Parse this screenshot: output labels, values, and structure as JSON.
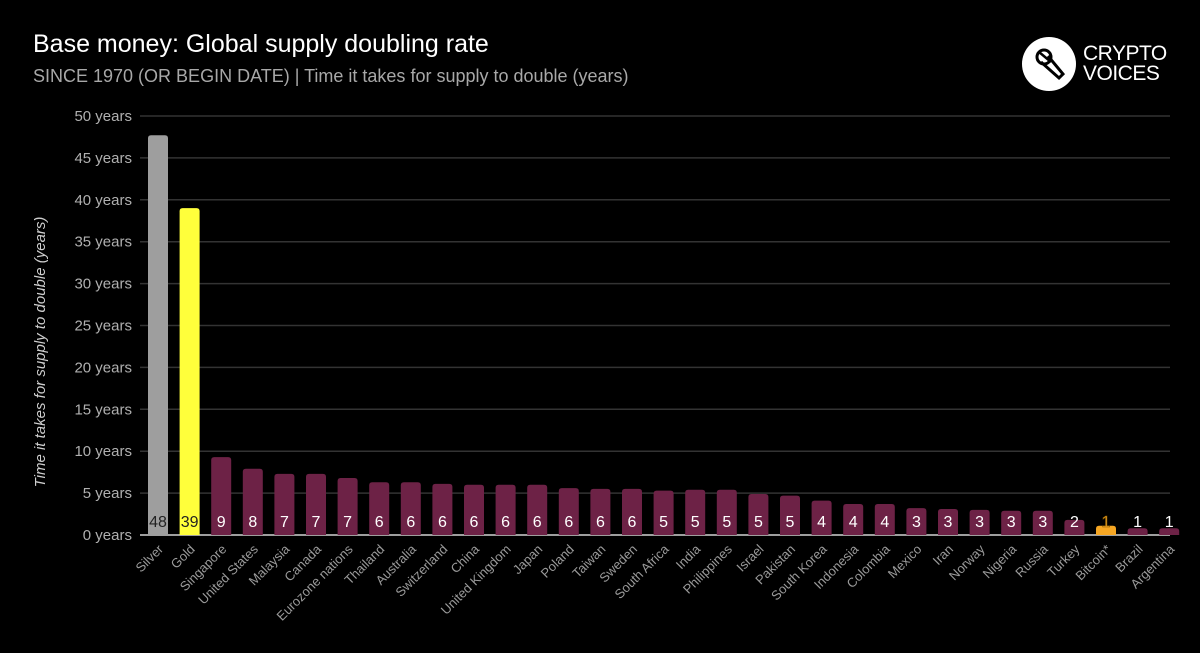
{
  "header": {
    "title": "Base money: Global supply doubling rate",
    "subtitle": "SINCE 1970 (OR BEGIN DATE) | Time it takes for supply to double (years)"
  },
  "logo": {
    "line1": "CRYPTO",
    "line2": "VOICES",
    "icon": "microphone-icon"
  },
  "colors": {
    "silver": "#9e9e9e",
    "gold": "#ffff3b",
    "default": "#6d2246",
    "bitcoin": "#f5a623",
    "grid": "#333333",
    "axis": "#9e9e9e"
  },
  "chart_data": {
    "type": "bar",
    "title": "Base money: Global supply doubling rate",
    "ylabel": "Time it takes for supply to double (years)",
    "xlabel": "",
    "ylim": [
      0,
      50
    ],
    "yticks": [
      0,
      5,
      10,
      15,
      20,
      25,
      30,
      35,
      40,
      45,
      50
    ],
    "ytick_suffix": " years",
    "grid": true,
    "categories": [
      "Silver",
      "Gold",
      "Singapore",
      "United States",
      "Malaysia",
      "Canada",
      "Eurozone nations",
      "Thailand",
      "Australia",
      "Switzerland",
      "China",
      "United Kingdom",
      "Japan",
      "Poland",
      "Taiwan",
      "Sweden",
      "South Africa",
      "India",
      "Philippines",
      "Israel",
      "Pakistan",
      "South Korea",
      "Indonesia",
      "Colombia",
      "Mexico",
      "Iran",
      "Norway",
      "Nigeria",
      "Russia",
      "Turkey",
      "Bitcoin*",
      "Brazil",
      "Argentina"
    ],
    "values": [
      47.7,
      39.0,
      9.3,
      7.9,
      7.3,
      7.3,
      6.8,
      6.3,
      6.3,
      6.1,
      6.0,
      6.0,
      6.0,
      5.6,
      5.5,
      5.5,
      5.3,
      5.4,
      5.4,
      4.9,
      4.7,
      4.1,
      3.7,
      3.7,
      3.2,
      3.1,
      3.0,
      2.9,
      2.9,
      1.8,
      1.1,
      0.8,
      0.8
    ],
    "data_labels": [
      "48",
      "39",
      "9",
      "8",
      "7",
      "7",
      "7",
      "6",
      "6",
      "6",
      "6",
      "6",
      "6",
      "6",
      "6",
      "6",
      "5",
      "5",
      "5",
      "5",
      "5",
      "4",
      "4",
      "4",
      "3",
      "3",
      "3",
      "3",
      "3",
      "2",
      "1",
      "1",
      "1"
    ]
  }
}
